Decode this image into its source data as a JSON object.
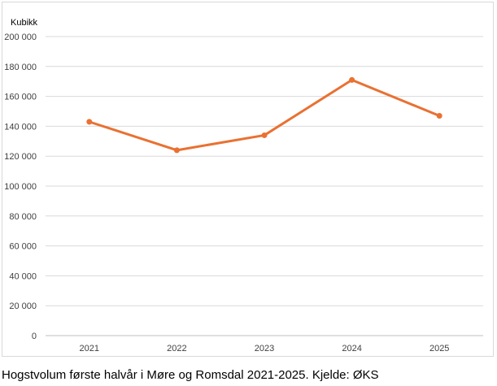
{
  "caption": "Hogstvolum første halvår i Møre og Romsdal 2021-2025. Kjelde: ØKS",
  "chart_data": {
    "type": "line",
    "title": "",
    "xlabel": "",
    "ylabel": "Kubikk",
    "categories": [
      "2021",
      "2022",
      "2023",
      "2024",
      "2025"
    ],
    "series": [
      {
        "values": [
          143000,
          124000,
          134000,
          171000,
          147000
        ],
        "color": "#E97132"
      }
    ],
    "ylim": [
      0,
      200000
    ],
    "yticks": [
      0,
      20000,
      40000,
      60000,
      80000,
      100000,
      120000,
      140000,
      160000,
      180000,
      200000
    ],
    "ytick_labels": [
      "0",
      "20 000",
      "40 000",
      "60 000",
      "80 000",
      "100 000",
      "120 000",
      "140 000",
      "160 000",
      "180 000",
      "200 000"
    ],
    "grid": true,
    "legend": "none",
    "gridline_color": "#d9d9d9",
    "axis_color": "#bfbfbf"
  }
}
